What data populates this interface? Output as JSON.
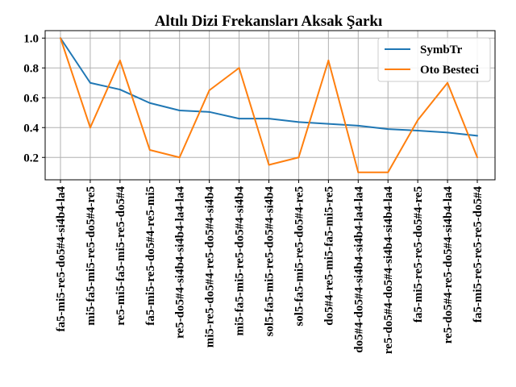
{
  "chart_data": {
    "type": "line",
    "title": "Altılı Dizi Frekansları Aksak Şarkı",
    "xlabel": "",
    "ylabel": "",
    "ylim": [
      0.05,
      1.05
    ],
    "yticks": [
      0.2,
      0.4,
      0.6,
      0.8,
      1.0
    ],
    "ytick_labels": [
      "0.2",
      "0.4",
      "0.6",
      "0.8",
      "1.0"
    ],
    "grid": true,
    "legend_position": "top-right",
    "categories": [
      "fa5-mi5-re5-do5#4-si4b4-la4",
      "mi5-fa5-mi5-re5-do5#4-re5",
      "re5-mi5-fa5-mi5-re5-do5#4",
      "fa5-mi5-re5-do5#4-re5-mi5",
      "re5-do5#4-si4b4-si4b4-la4-la4",
      "mi5-re5-do5#4-re5-do5#4-si4b4",
      "mi5-fa5-mi5-re5-do5#4-si4b4",
      "sol5-fa5-mi5-re5-do5#4-si4b4",
      "sol5-fa5-mi5-re5-do5#4-re5",
      "do5#4-re5-mi5-fa5-mi5-re5",
      "do5#4-do5#4-si4b4-si4b4-la4-la4",
      "re5-do5#4-do5#4-si4b4-si4b4-la4",
      "fa5-mi5-re5-re5-do5#4-re5",
      "re5-do5#4-re5-do5#4-si4b4-la4",
      "fa5-mi5-re5-re5-re5-do5#4"
    ],
    "series": [
      {
        "name": "SymbTr",
        "color": "#1f77b4",
        "values": [
          1.0,
          0.7,
          0.655,
          0.565,
          0.515,
          0.505,
          0.46,
          0.46,
          0.437,
          0.425,
          0.413,
          0.39,
          0.38,
          0.367,
          0.345
        ]
      },
      {
        "name": "Oto Besteci",
        "color": "#ff7f0e",
        "values": [
          1.0,
          0.4,
          0.85,
          0.25,
          0.2,
          0.65,
          0.8,
          0.15,
          0.2,
          0.85,
          0.1,
          0.1,
          0.45,
          0.7,
          0.2
        ]
      }
    ]
  }
}
